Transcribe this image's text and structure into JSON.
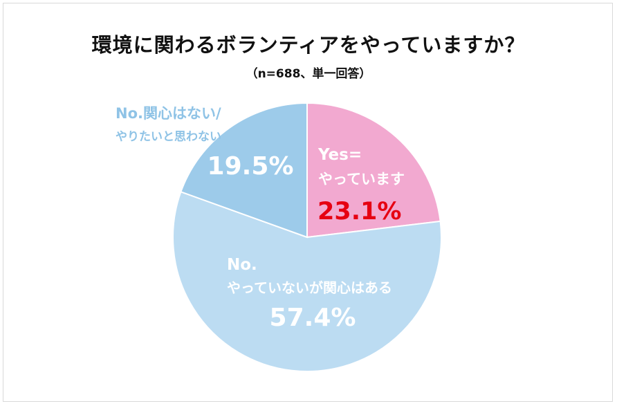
{
  "title": "環境に関わるボランティアをやっていますか？",
  "subtitle": "（n=688、単一回答）",
  "colors": {
    "yes": "#f2a9d0",
    "no_interested": "#bcdcf2",
    "no_not_interested": "#9dcbea",
    "yes_percent_text": "#e60012",
    "inner_text": "#ffffff",
    "outside_label_text": "#8fc3e6"
  },
  "chart_data": {
    "type": "pie",
    "unit": "%",
    "slices": [
      {
        "key": "yes",
        "label_lines": [
          "Yes=",
          "やっています"
        ],
        "value": 23.1,
        "percent_label": "23.1%"
      },
      {
        "key": "no_interested",
        "label_lines": [
          "No.",
          "やっていないが関心はある"
        ],
        "value": 57.4,
        "percent_label": "57.4%"
      },
      {
        "key": "no_not_interested",
        "label_lines": [
          "No.関心はない/",
          "やりたいと思わない"
        ],
        "value": 19.5,
        "percent_label": "19.5%"
      }
    ]
  }
}
